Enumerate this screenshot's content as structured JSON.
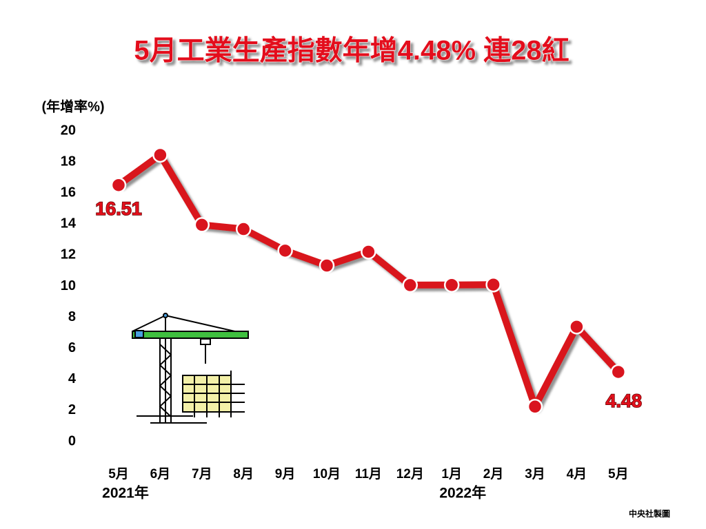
{
  "chart_data": {
    "type": "line",
    "title": "5月工業生產指數年增4.48%  連28紅",
    "y_label": "(年增率%)",
    "categories": [
      "5月",
      "6月",
      "7月",
      "8月",
      "9月",
      "10月",
      "11月",
      "12月",
      "1月",
      "2月",
      "3月",
      "4月",
      "5月"
    ],
    "year_labels": [
      "2021年",
      "2022年"
    ],
    "values": [
      16.51,
      18.45,
      13.95,
      13.68,
      12.29,
      11.33,
      12.22,
      10.07,
      10.08,
      10.1,
      2.25,
      7.39,
      4.48
    ],
    "color": "#d9141e",
    "ylim": [
      0,
      20
    ],
    "yticks": [
      0,
      2,
      4,
      6,
      8,
      10,
      12,
      14,
      16,
      18,
      20
    ],
    "grid": false,
    "source": "中央社製圖"
  }
}
